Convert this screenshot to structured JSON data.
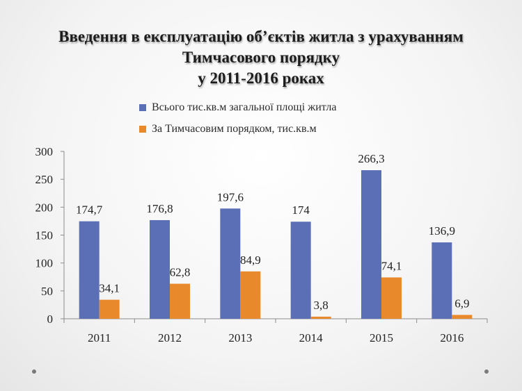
{
  "slide": {
    "title_lines": [
      "Введення в експлуатацію об’єктів житла з урахуванням",
      "Тимчасового порядку",
      "у 2011-2016 роках"
    ]
  },
  "chart_data": {
    "type": "bar",
    "categories": [
      "2011",
      "2012",
      "2013",
      "2014",
      "2015",
      "2016"
    ],
    "series": [
      {
        "name": "Всього тис.кв.м загальної площі житла",
        "values": [
          174.7,
          176.8,
          197.6,
          174,
          266.3,
          136.9
        ],
        "labels": [
          "174,7",
          "176,8",
          "197,6",
          "174",
          "266,3",
          "136,9"
        ],
        "color": "#5b6fb7"
      },
      {
        "name": "За Тимчасовим порядком, тис.кв.м",
        "values": [
          34.1,
          62.8,
          84.9,
          3.8,
          74.1,
          6.9
        ],
        "labels": [
          "34,1",
          "62,8",
          "84,9",
          "3,8",
          "74,1",
          "6,9"
        ],
        "color": "#e8892b"
      }
    ],
    "yticks": [
      "0",
      "50",
      "100",
      "150",
      "200",
      "250",
      "300"
    ],
    "ylim": [
      0,
      300
    ],
    "legend": "top",
    "grid": false
  }
}
